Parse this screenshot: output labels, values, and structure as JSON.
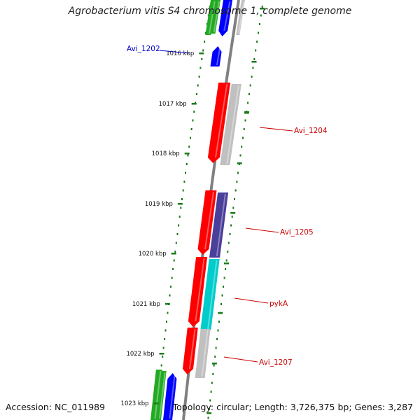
{
  "title": "Agrobacterium vitis S4 chromosome 1, complete genome",
  "footer": {
    "accession": "Accession: NC_011989",
    "topology": "Topology: circular; Length: 3,726,375 bp; Genes: 3,287"
  },
  "colors": {
    "backbone": "#808080",
    "tick": "#1a7a1a",
    "label_red": "#cc0000",
    "label_blue": "#0000cc",
    "gene_red": "#ff0000",
    "gene_gray": "#c0c0c0",
    "gene_blue": "#0000ff",
    "gene_green": "#22aa22",
    "gene_cyan": "#00cccc",
    "gene_purple": "#4a3f9a"
  },
  "ticks": [
    {
      "label": "1016 kbp"
    },
    {
      "label": "1017 kbp"
    },
    {
      "label": "1018 kbp"
    },
    {
      "label": "1019 kbp"
    },
    {
      "label": "1020 kbp"
    },
    {
      "label": "1021 kbp"
    },
    {
      "label": "1022 kbp"
    },
    {
      "label": "1023 kbp"
    }
  ],
  "gene_labels": [
    {
      "text": "Avi_1202",
      "color": "blue"
    },
    {
      "text": "Avi_1204",
      "color": "red"
    },
    {
      "text": "Avi_1205",
      "color": "red"
    },
    {
      "text": "pykA",
      "color": "red"
    },
    {
      "text": "Avi_1207",
      "color": "red"
    }
  ]
}
